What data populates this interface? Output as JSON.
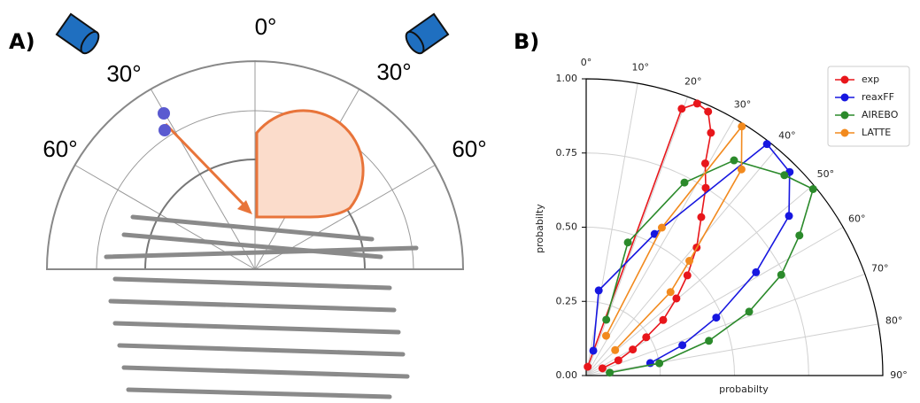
{
  "panel_a": {
    "label": "A)",
    "angles": [
      "0°",
      "30°",
      "30°",
      "60°",
      "60°"
    ]
  },
  "chart_data": {
    "type": "polar",
    "label": "B)",
    "xlabel": "probabilty",
    "ylabel": "probabilty",
    "thetalim": [
      0,
      90
    ],
    "thetaticks": [
      {
        "value": 0,
        "label": "0°"
      },
      {
        "value": 10,
        "label": "10°"
      },
      {
        "value": 20,
        "label": "20°"
      },
      {
        "value": 30,
        "label": "30°"
      },
      {
        "value": 40,
        "label": "40°"
      },
      {
        "value": 50,
        "label": "50°"
      },
      {
        "value": 60,
        "label": "60°"
      },
      {
        "value": 70,
        "label": "70°"
      },
      {
        "value": 80,
        "label": "80°"
      },
      {
        "value": 90,
        "label": "90°"
      }
    ],
    "rlim": [
      0,
      1
    ],
    "rticks": [
      {
        "value": 0,
        "label": "0.00"
      },
      {
        "value": 0.25,
        "label": "0.25"
      },
      {
        "value": 0.5,
        "label": "0.50"
      },
      {
        "value": 0.75,
        "label": "0.75"
      },
      {
        "value": 1,
        "label": "1.00"
      }
    ],
    "grid": true,
    "legend": "upper right",
    "series": [
      {
        "name": "exp",
        "color": "#e8161b",
        "theta": [
          10,
          19.7,
          22.2,
          24.8,
          27.2,
          29.3,
          32.5,
          36,
          40.8,
          45.3,
          49.5,
          54.2,
          57.5,
          60.8,
          64.7,
          66
        ],
        "r": [
          0.03,
          0.955,
          0.99,
          0.98,
          0.92,
          0.82,
          0.75,
          0.66,
          0.57,
          0.48,
          0.4,
          0.32,
          0.24,
          0.18,
          0.12,
          0.06
        ]
      },
      {
        "name": "reaxFF",
        "color": "#1717e0",
        "theta": [
          16,
          8.4,
          25.8,
          38,
          45,
          51.8,
          58.7,
          66,
          72.5,
          79
        ],
        "r": [
          0.087,
          0.29,
          0.53,
          0.99,
          0.97,
          0.87,
          0.67,
          0.48,
          0.34,
          0.22
        ]
      },
      {
        "name": "AIREBO",
        "color": "#2b8a2b",
        "theta": [
          19.8,
          17.4,
          27,
          34.5,
          44.7,
          50.6,
          56.7,
          62.7,
          68.6,
          74.2,
          80.5,
          83
        ],
        "r": [
          0.2,
          0.47,
          0.73,
          0.88,
          0.95,
          0.99,
          0.86,
          0.74,
          0.59,
          0.43,
          0.25,
          0.08
        ]
      },
      {
        "name": "LATTE",
        "color": "#f28a1e",
        "theta": [
          26.6,
          27.1,
          32,
          37,
          42,
          45.3,
          48.7
        ],
        "r": [
          0.15,
          0.56,
          0.99,
          0.87,
          0.52,
          0.4,
          0.13
        ]
      }
    ]
  }
}
